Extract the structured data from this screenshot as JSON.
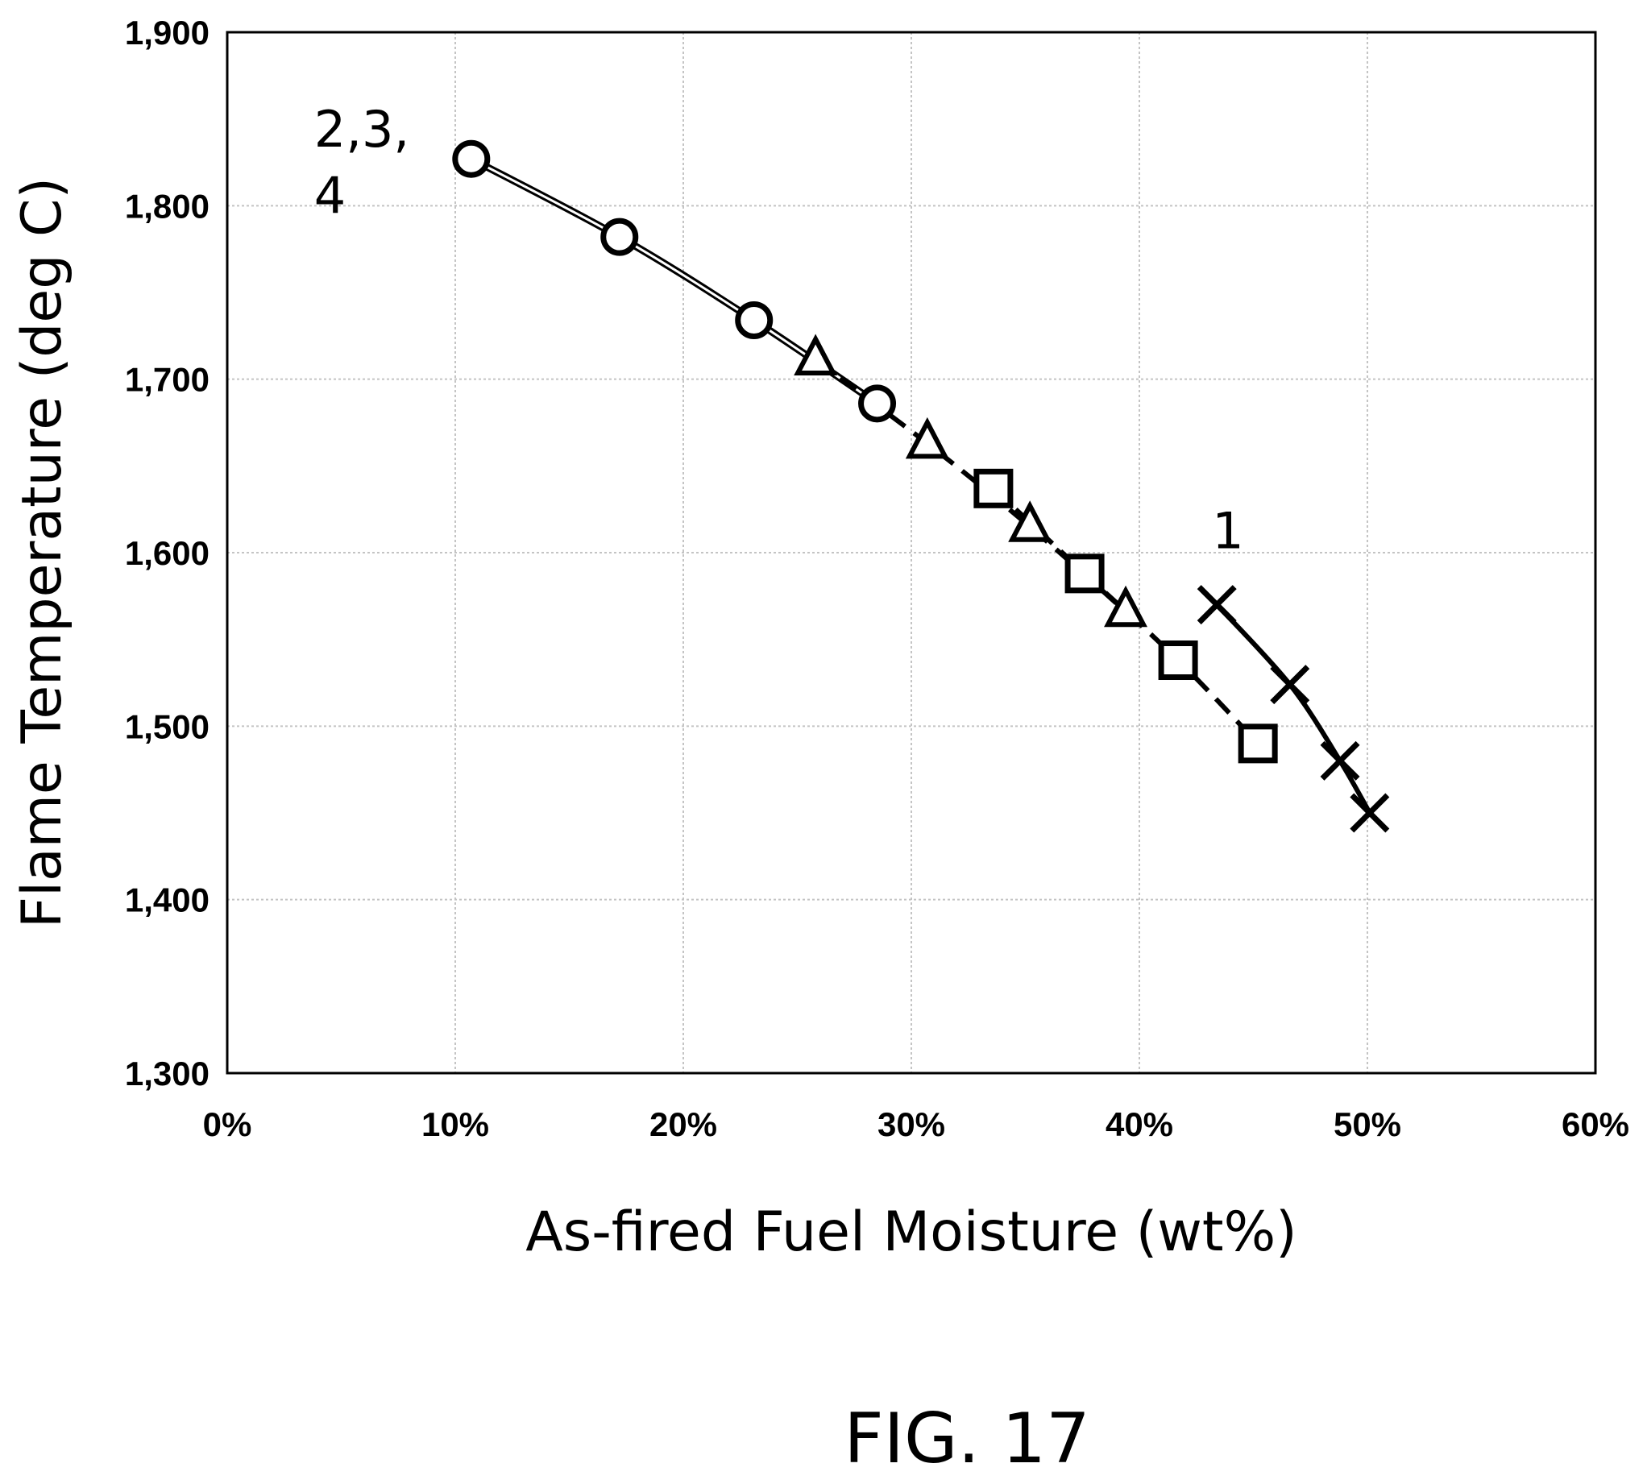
{
  "figure": {
    "caption": "FIG. 17"
  },
  "chart_data": {
    "type": "line",
    "title": "",
    "xlabel": "As-fired Fuel Moisture (wt%)",
    "ylabel": "Flame Temperature (deg C)",
    "xlim": [
      0,
      60
    ],
    "ylim": [
      1300,
      1900
    ],
    "x_ticks": [
      0,
      10,
      20,
      30,
      40,
      50,
      60
    ],
    "x_tick_labels": [
      "0%",
      "10%",
      "20%",
      "30%",
      "40%",
      "50%",
      "60%"
    ],
    "y_ticks": [
      1300,
      1400,
      1500,
      1600,
      1700,
      1800,
      1900
    ],
    "y_tick_labels": [
      "1,300",
      "1,400",
      "1,500",
      "1,600",
      "1,700",
      "1,800",
      "1,900"
    ],
    "grid": true,
    "legend": "none",
    "annotations": [
      {
        "text_lines": [
          "2,3,",
          "4"
        ],
        "near": "circle series start"
      },
      {
        "text_lines": [
          "1"
        ],
        "near": "cross series start"
      }
    ],
    "series": [
      {
        "marker": "circle",
        "line_style": "double-solid",
        "color": "#000000",
        "x": [
          10.7,
          17.2,
          23.1,
          28.5
        ],
        "y": [
          1827,
          1782,
          1734,
          1686
        ]
      },
      {
        "marker": "triangle",
        "line_style": "dashed",
        "color": "#000000",
        "x": [
          25.8,
          30.7,
          35.2,
          39.4
        ],
        "y": [
          1711,
          1663,
          1615,
          1566
        ]
      },
      {
        "marker": "square",
        "line_style": "dashed",
        "color": "#000000",
        "x": [
          33.6,
          37.6,
          41.7,
          45.2
        ],
        "y": [
          1637,
          1588,
          1538,
          1490
        ]
      },
      {
        "marker": "x",
        "line_style": "solid",
        "color": "#000000",
        "x": [
          43.4,
          46.6,
          48.8,
          50.1
        ],
        "y": [
          1570,
          1524,
          1480,
          1450
        ]
      }
    ]
  }
}
